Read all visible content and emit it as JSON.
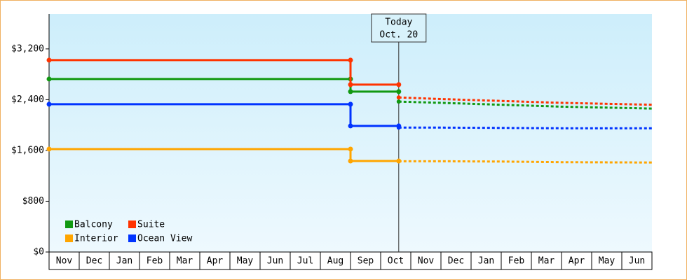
{
  "chart_data": {
    "type": "step-line",
    "categories": [
      "Nov",
      "Dec",
      "Jan",
      "Feb",
      "Mar",
      "Apr",
      "May",
      "Jun",
      "Jul",
      "Aug",
      "Sep",
      "Oct",
      "Nov",
      "Dec",
      "Jan",
      "Feb",
      "Mar",
      "Apr",
      "May",
      "Jun"
    ],
    "xlim": [
      0,
      20
    ],
    "x": [
      0,
      10,
      10,
      11.6,
      11.6,
      13,
      15,
      17,
      20
    ],
    "ylim": [
      0,
      3750
    ],
    "yticks": [
      {
        "value": 0,
        "label": "$0"
      },
      {
        "value": 800,
        "label": "$800"
      },
      {
        "value": 1600,
        "label": "$1,600"
      },
      {
        "value": 2400,
        "label": "$2,400"
      },
      {
        "value": 3200,
        "label": "$3,200"
      }
    ],
    "annotation": {
      "x": 11.6,
      "lines": [
        "Today",
        "Oct. 20"
      ]
    },
    "series": [
      {
        "name": "Balcony",
        "color": "#119911",
        "values": [
          2725,
          2725,
          2527,
          2527,
          null,
          null,
          null,
          null,
          null
        ],
        "forecast": [
          null,
          null,
          null,
          null,
          2370,
          2350,
          2320,
          2290,
          2260
        ]
      },
      {
        "name": "Suite",
        "color": "#ff3300",
        "values": [
          3023,
          3023,
          2637,
          2637,
          null,
          null,
          null,
          null,
          null
        ],
        "forecast": [
          null,
          null,
          null,
          null,
          2435,
          2410,
          2380,
          2350,
          2320
        ]
      },
      {
        "name": "Interior",
        "color": "#ffa500",
        "values": [
          1622,
          1622,
          1434,
          1434,
          null,
          null,
          null,
          null,
          null
        ],
        "forecast": [
          null,
          null,
          null,
          null,
          1430,
          1430,
          1425,
          1415,
          1410
        ]
      },
      {
        "name": "Ocean View",
        "color": "#0033ff",
        "values": [
          2328,
          2328,
          1986,
          1986,
          null,
          null,
          null,
          null,
          null
        ],
        "forecast": [
          null,
          null,
          null,
          null,
          1960,
          1960,
          1955,
          1950,
          1950
        ]
      }
    ]
  }
}
